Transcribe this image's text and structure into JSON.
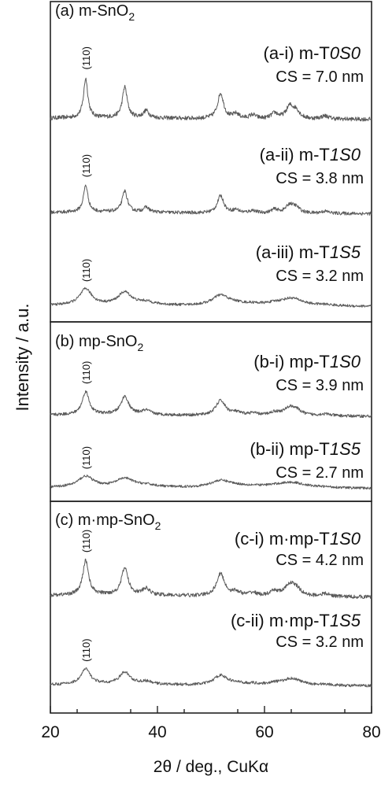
{
  "chart_data": {
    "type": "line",
    "xlabel": "2θ / deg., CuKα",
    "ylabel": "Intensity / a.u.",
    "xlim": [
      20,
      80
    ],
    "xticks": [
      20,
      40,
      60,
      80
    ],
    "yticks": [],
    "grid": false,
    "peaks_deg": [
      26.6,
      33.9,
      37.9,
      51.8,
      54.7,
      57.8,
      61.9,
      64.7,
      65.9,
      71.3
    ],
    "peak_widths_deg": [
      0.42,
      0.48,
      0.55,
      0.6,
      0.62,
      0.65,
      0.68,
      0.7,
      0.72,
      0.8
    ],
    "peak_rel_intensity": [
      1.0,
      0.78,
      0.18,
      0.65,
      0.12,
      0.1,
      0.14,
      0.3,
      0.2,
      0.08
    ],
    "panels": [
      {
        "label": "(a) m-SnO",
        "label_sub": "2",
        "series": [
          {
            "name": "(a-i) m-T0S0",
            "label_prefix": "(a-i) m-T",
            "label_code": "0S0",
            "cs": "CS = 7.0 nm",
            "peak_label": "(110)",
            "height": 0.95,
            "sharp": 0.88,
            "base": 0.08
          },
          {
            "name": "(a-ii) m-T1S0",
            "label_prefix": "(a-ii) m-T",
            "label_code": "1S0",
            "cs": "CS = 3.8 nm",
            "peak_label": "(110)",
            "height": 0.8,
            "sharp": 0.82,
            "base": 0.1
          },
          {
            "name": "(a-iii) m-T1S5",
            "label_prefix": "(a-iii) m-T",
            "label_code": "1S5",
            "cs": "CS = 3.2 nm",
            "peak_label": "(110)",
            "height": 0.62,
            "sharp": 0.32,
            "base": 0.13
          }
        ]
      },
      {
        "label": "(b) mp-SnO",
        "label_sub": "2",
        "series": [
          {
            "name": "(b-i) mp-T1S0",
            "label_prefix": "(b-i) mp-T",
            "label_code": "1S0",
            "cs": "CS = 3.9 nm",
            "peak_label": "(110)",
            "height": 0.78,
            "sharp": 0.55,
            "base": 0.12
          },
          {
            "name": "(b-ii) mp-T1S5",
            "label_prefix": "(b-ii) mp-T",
            "label_code": "1S5",
            "cs": "CS = 2.7 nm",
            "peak_label": "(110)",
            "height": 0.45,
            "sharp": 0.25,
            "base": 0.12
          }
        ]
      },
      {
        "label": "(c) m·mp-SnO",
        "label_sub": "2",
        "series": [
          {
            "name": "(c-i) m·mp-T1S0",
            "label_prefix": "(c-i)  m·mp-T",
            "label_code": "1S0",
            "cs": "CS = 4.2 nm",
            "peak_label": "(110)",
            "height": 0.92,
            "sharp": 0.65,
            "base": 0.12
          },
          {
            "name": "(c-ii) m·mp-T1S5",
            "label_prefix": "(c-ii)  m·mp-T",
            "label_code": "1S5",
            "cs": "CS = 3.2 nm",
            "peak_label": "(110)",
            "height": 0.55,
            "sharp": 0.4,
            "base": 0.12
          }
        ]
      }
    ]
  }
}
